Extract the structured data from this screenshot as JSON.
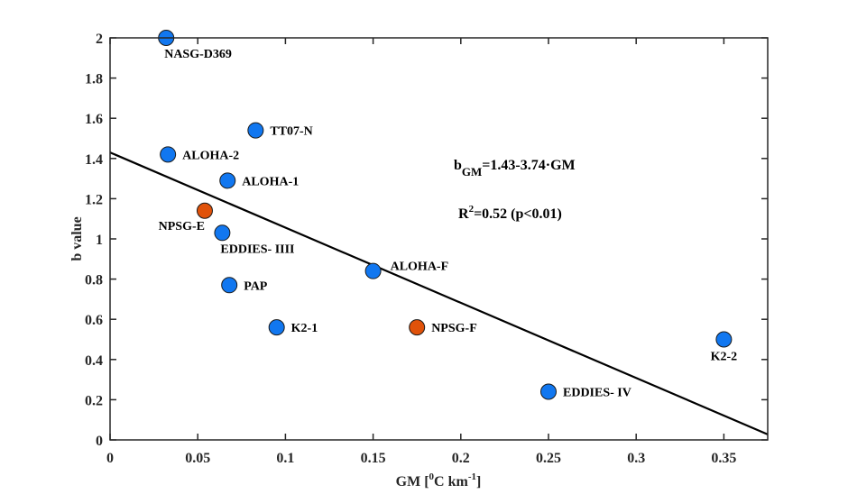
{
  "chart_data": {
    "type": "scatter",
    "title": "",
    "xlabel": "GM [°C km⁻¹]",
    "xlabel_parts": {
      "main": "GM [",
      "sup": "0",
      "mid": "C km",
      "sup2": "-1",
      "end": "]"
    },
    "ylabel": "b value",
    "xlim": [
      0,
      0.375
    ],
    "ylim": [
      0,
      2
    ],
    "xticks": [
      0,
      0.05,
      0.1,
      0.15,
      0.2,
      0.25,
      0.3,
      0.35
    ],
    "xtick_labels": [
      "0",
      "0.05",
      "0.1",
      "0.15",
      "0.2",
      "0.25",
      "0.3",
      "0.35"
    ],
    "yticks": [
      0,
      0.2,
      0.4,
      0.6,
      0.8,
      1,
      1.2,
      1.4,
      1.6,
      1.8,
      2
    ],
    "ytick_labels": [
      "0",
      "0.2",
      "0.4",
      "0.6",
      "0.8",
      "1",
      "1.2",
      "1.4",
      "1.6",
      "1.8",
      "2"
    ],
    "grid": false,
    "colors": {
      "blue": "#1177f0",
      "orange": "#e0520a",
      "line": "#000000"
    },
    "points": [
      {
        "name": "NASG-D369",
        "x": 0.032,
        "y": 2.0,
        "color": "blue",
        "label_pos": "below-right"
      },
      {
        "name": "TT07-N",
        "x": 0.083,
        "y": 1.54,
        "color": "blue",
        "label_pos": "right"
      },
      {
        "name": "ALOHA-2",
        "x": 0.033,
        "y": 1.42,
        "color": "blue",
        "label_pos": "right"
      },
      {
        "name": "ALOHA-1",
        "x": 0.067,
        "y": 1.29,
        "color": "blue",
        "label_pos": "right"
      },
      {
        "name": "NPSG-E",
        "x": 0.054,
        "y": 1.14,
        "color": "orange",
        "label_pos": "below-left"
      },
      {
        "name": "EDDIES- IIII",
        "x": 0.064,
        "y": 1.03,
        "color": "blue",
        "label_pos": "below-right"
      },
      {
        "name": "ALOHA-F",
        "x": 0.15,
        "y": 0.84,
        "color": "blue",
        "label_pos": "right-up"
      },
      {
        "name": "PAP",
        "x": 0.068,
        "y": 0.77,
        "color": "blue",
        "label_pos": "right"
      },
      {
        "name": "K2-1",
        "x": 0.095,
        "y": 0.56,
        "color": "blue",
        "label_pos": "right"
      },
      {
        "name": "NPSG-F",
        "x": 0.175,
        "y": 0.56,
        "color": "orange",
        "label_pos": "right"
      },
      {
        "name": "K2-2",
        "x": 0.35,
        "y": 0.5,
        "color": "blue",
        "label_pos": "below"
      },
      {
        "name": "EDDIES- IV",
        "x": 0.25,
        "y": 0.24,
        "color": "blue",
        "label_pos": "right"
      }
    ],
    "fit_line": {
      "intercept": 1.43,
      "slope": -3.74,
      "x_range": [
        0,
        0.375
      ]
    },
    "annotations": {
      "equation": {
        "b": "b",
        "sub": "GM",
        "rest": "=1.43-3.74·GM"
      },
      "r2": {
        "r": "R",
        "sup": "2",
        "rest": "=0.52 (p<0.01)"
      }
    }
  }
}
